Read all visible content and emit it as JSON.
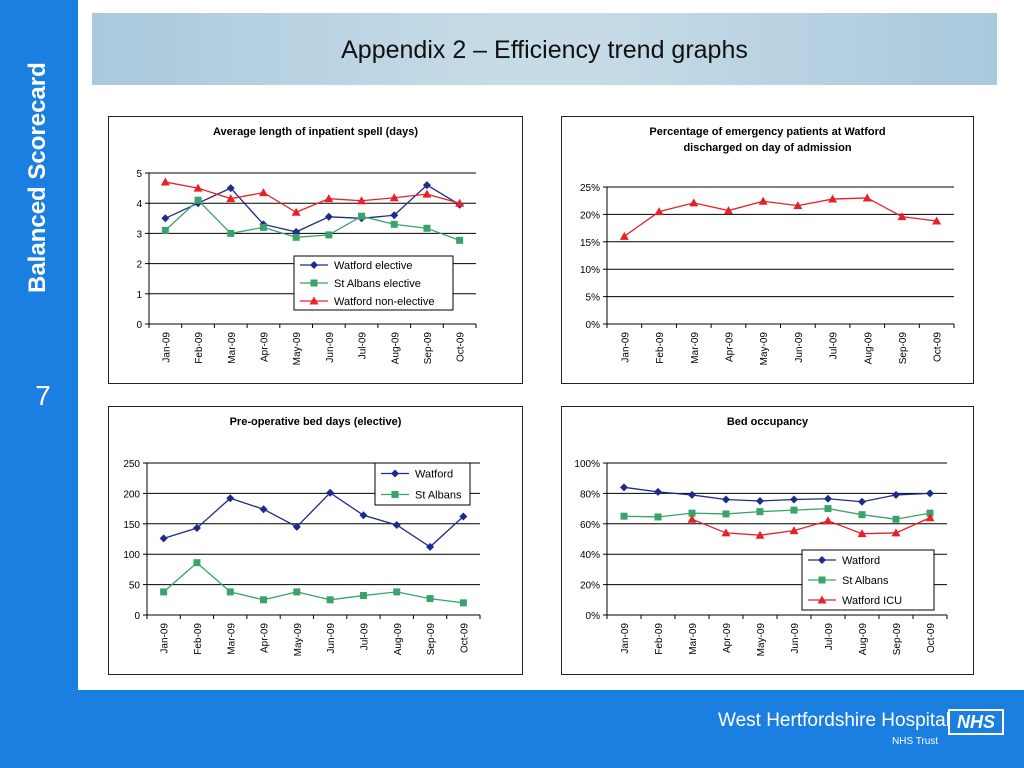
{
  "sidebar": {
    "title": "Balanced Scorecard",
    "slide_number": "7"
  },
  "header": {
    "title": "Appendix 2 – Efficiency trend graphs"
  },
  "footer": {
    "org_name": "West Hertfordshire Hospitals",
    "org_sub": "NHS Trust",
    "logo_text": "NHS"
  },
  "colors": {
    "series_blue": "#1f2a8c",
    "series_green": "#3aa36a",
    "series_red": "#e8202a",
    "sidebar_blue": "#1a7fe0"
  },
  "chart_data": [
    {
      "type": "line",
      "title": "Average length of inpatient spell (days)",
      "categories": [
        "Jan-09",
        "Feb-09",
        "Mar-09",
        "Apr-09",
        "May-09",
        "Jun-09",
        "Jul-09",
        "Aug-09",
        "Sep-09",
        "Oct-09"
      ],
      "ylim": [
        0,
        5
      ],
      "yticks": [
        "0",
        "1",
        "2",
        "3",
        "4",
        "5"
      ],
      "legend_position": "right-middle",
      "grid": true,
      "series": [
        {
          "name": "Watford elective",
          "marker": "diamond",
          "color": "#1f2a8c",
          "values": [
            3.5,
            4.0,
            4.5,
            3.3,
            3.05,
            3.55,
            3.5,
            3.6,
            4.6,
            3.95
          ]
        },
        {
          "name": "St Albans elective",
          "marker": "square",
          "color": "#3aa36a",
          "values": [
            3.1,
            4.1,
            3.0,
            3.2,
            2.87,
            2.95,
            3.57,
            3.3,
            3.17,
            2.77
          ]
        },
        {
          "name": "Watford non-elective",
          "marker": "triangle",
          "color": "#e8202a",
          "values": [
            4.7,
            4.5,
            4.15,
            4.35,
            3.7,
            4.15,
            4.08,
            4.18,
            4.3,
            4.0
          ]
        }
      ]
    },
    {
      "type": "line",
      "title": "Percentage of emergency patients at Watford discharged on day of admission",
      "title_lines": [
        "Percentage of emergency patients at Watford",
        "discharged on day of admission"
      ],
      "categories": [
        "Jan-09",
        "Feb-09",
        "Mar-09",
        "Apr-09",
        "May-09",
        "Jun-09",
        "Jul-09",
        "Aug-09",
        "Sep-09",
        "Oct-09"
      ],
      "ylim": [
        0,
        25
      ],
      "yticks": [
        "0%",
        "5%",
        "10%",
        "15%",
        "20%",
        "25%"
      ],
      "grid": true,
      "series": [
        {
          "marker": "triangle",
          "color": "#e8202a",
          "values": [
            16.0,
            20.5,
            22.1,
            20.7,
            22.4,
            21.6,
            22.8,
            23.0,
            19.6,
            18.8
          ]
        }
      ]
    },
    {
      "type": "line",
      "title": "Pre-operative bed days (elective)",
      "categories": [
        "Jan-09",
        "Feb-09",
        "Mar-09",
        "Apr-09",
        "May-09",
        "Jun-09",
        "Jul-09",
        "Aug-09",
        "Sep-09",
        "Oct-09"
      ],
      "ylim": [
        0,
        250
      ],
      "yticks": [
        "0",
        "50",
        "100",
        "150",
        "200",
        "250"
      ],
      "legend_position": "top-right",
      "grid": true,
      "series": [
        {
          "name": "Watford",
          "marker": "diamond",
          "color": "#1f2a8c",
          "values": [
            126,
            143,
            192,
            174,
            145,
            201,
            164,
            148,
            112,
            162
          ]
        },
        {
          "name": "St Albans",
          "marker": "square",
          "color": "#3aa36a",
          "values": [
            38,
            86,
            38,
            25,
            38,
            25,
            32,
            38,
            27,
            20
          ]
        }
      ]
    },
    {
      "type": "line",
      "title": "Bed occupancy",
      "categories": [
        "Jan-09",
        "Feb-09",
        "Mar-09",
        "Apr-09",
        "May-09",
        "Jun-09",
        "Jul-09",
        "Aug-09",
        "Sep-09",
        "Oct-09"
      ],
      "ylim": [
        0,
        100
      ],
      "yticks": [
        "0%",
        "20%",
        "40%",
        "60%",
        "80%",
        "100%"
      ],
      "legend_position": "right-bottom",
      "grid": true,
      "series": [
        {
          "name": "Watford",
          "marker": "diamond",
          "color": "#1f2a8c",
          "values": [
            84,
            81,
            79,
            76,
            75,
            76,
            76.5,
            74.5,
            79,
            80
          ]
        },
        {
          "name": "St Albans",
          "marker": "square",
          "color": "#3aa36a",
          "values": [
            65,
            64.5,
            67,
            66.5,
            68,
            69,
            70,
            66,
            63,
            67
          ]
        },
        {
          "name": "Watford ICU",
          "marker": "triangle",
          "color": "#e8202a",
          "values": [
            null,
            null,
            63,
            54,
            52.5,
            55.5,
            62,
            53.5,
            54,
            64
          ]
        }
      ]
    }
  ]
}
